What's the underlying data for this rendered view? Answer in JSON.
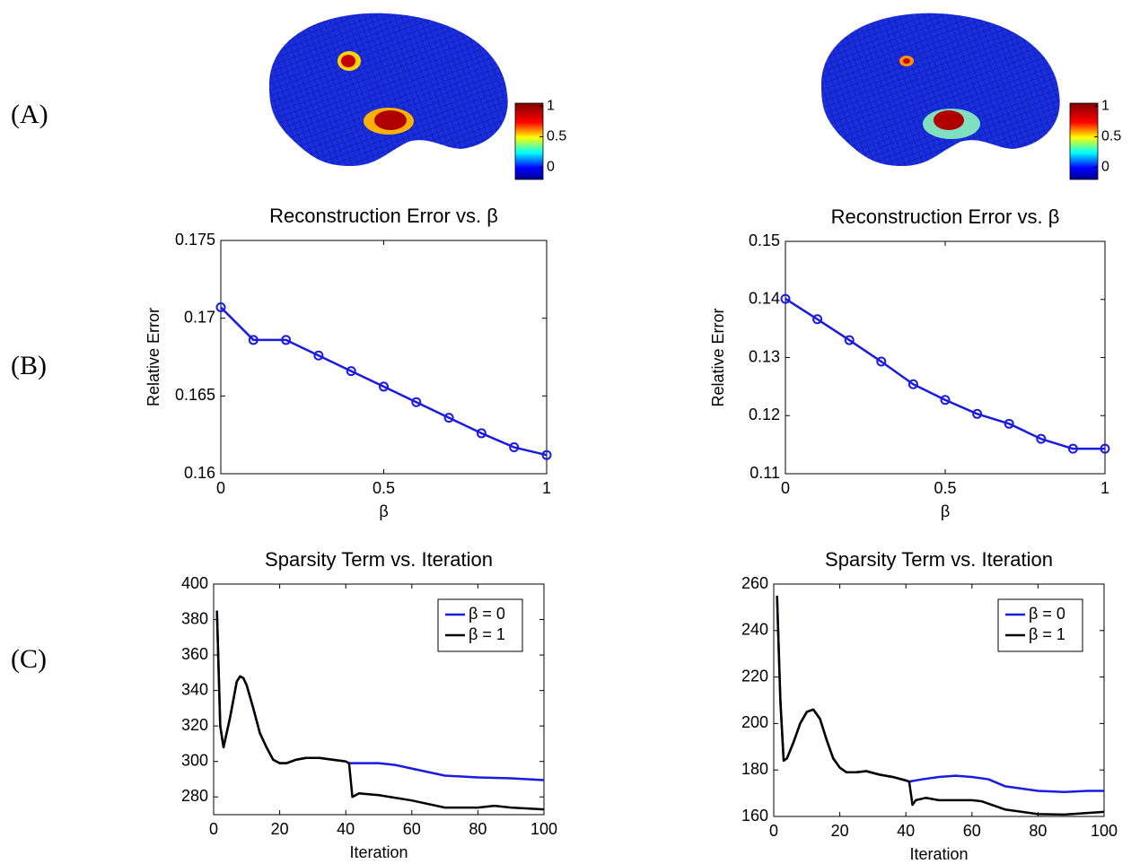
{
  "panel_labels": [
    "(A)",
    "(B)",
    "(C)"
  ],
  "chart_data": [
    {
      "type": "colorbar",
      "ylim": [
        -0.2,
        1.05
      ],
      "yticks": [
        0,
        0.5,
        1
      ]
    },
    {
      "type": "colorbar",
      "ylim": [
        -0.2,
        1.05
      ],
      "yticks": [
        0,
        0.5,
        1
      ]
    },
    {
      "type": "line",
      "title": "Reconstruction Error vs. β",
      "xlabel": "β",
      "ylabel": "Relative Error",
      "x": [
        0,
        0.1,
        0.2,
        0.3,
        0.4,
        0.5,
        0.6,
        0.7,
        0.8,
        0.9,
        1
      ],
      "xlim": [
        0,
        1
      ],
      "xticks": [
        0,
        0.5,
        1
      ],
      "ylim": [
        0.16,
        0.175
      ],
      "yticks": [
        0.16,
        0.165,
        0.17,
        0.175
      ],
      "series": [
        {
          "color": "#1a1ae0",
          "marker": "o",
          "values": [
            0.1707,
            0.1686,
            0.1686,
            0.1676,
            0.1666,
            0.1656,
            0.1646,
            0.1636,
            0.1626,
            0.1617,
            0.1612
          ]
        }
      ]
    },
    {
      "type": "line",
      "title": "Reconstruction Error vs. β",
      "xlabel": "β",
      "ylabel": "Relative Error",
      "x": [
        0,
        0.1,
        0.2,
        0.3,
        0.4,
        0.5,
        0.6,
        0.7,
        0.8,
        0.9,
        1
      ],
      "xlim": [
        0,
        1
      ],
      "xticks": [
        0,
        0.5,
        1
      ],
      "ylim": [
        0.11,
        0.15
      ],
      "yticks": [
        0.11,
        0.12,
        0.13,
        0.14,
        0.15
      ],
      "series": [
        {
          "color": "#1a1ae0",
          "marker": "o",
          "values": [
            0.1401,
            0.1366,
            0.133,
            0.1293,
            0.1254,
            0.1227,
            0.1203,
            0.1186,
            0.116,
            0.1143,
            0.1143
          ]
        }
      ]
    },
    {
      "type": "line",
      "title": "Sparsity Term vs. Iteration",
      "xlabel": "Iteration",
      "xlim": [
        0,
        100
      ],
      "xticks": [
        0,
        20,
        40,
        60,
        80,
        100
      ],
      "ylim": [
        270,
        400
      ],
      "yticks": [
        280,
        300,
        320,
        340,
        360,
        380,
        400
      ],
      "legend": "upper right",
      "series": [
        {
          "name": "β = 0",
          "color": "#1a1ae0",
          "x": [
            1,
            2,
            3,
            5,
            7,
            8,
            9,
            10,
            12,
            14,
            16,
            18,
            20,
            22,
            25,
            28,
            32,
            36,
            40,
            41,
            45,
            50,
            55,
            60,
            70,
            80,
            90,
            100
          ],
          "values": [
            385,
            320,
            308,
            325,
            345,
            348,
            347,
            343,
            330,
            316,
            308,
            301,
            299,
            299,
            301,
            302,
            302,
            301,
            300,
            299,
            299,
            299,
            298,
            296,
            292,
            291,
            290.5,
            289.5
          ]
        },
        {
          "name": "β = 1",
          "color": "#000000",
          "x": [
            1,
            2,
            3,
            5,
            7,
            8,
            9,
            10,
            12,
            14,
            16,
            18,
            20,
            22,
            25,
            28,
            32,
            36,
            40,
            41,
            42,
            44,
            50,
            60,
            70,
            80,
            85,
            90,
            100
          ],
          "values": [
            385,
            320,
            308,
            325,
            345,
            348,
            347,
            343,
            330,
            316,
            308,
            301,
            299,
            299,
            301,
            302,
            302,
            301,
            300,
            299,
            280,
            282,
            281,
            278,
            274,
            274,
            275,
            274,
            273
          ]
        }
      ]
    },
    {
      "type": "line",
      "title": "Sparsity Term vs. Iteration",
      "xlabel": "Iteration",
      "xlim": [
        0,
        100
      ],
      "xticks": [
        0,
        20,
        40,
        60,
        80,
        100
      ],
      "ylim": [
        160,
        260
      ],
      "yticks": [
        160,
        180,
        200,
        220,
        240,
        260
      ],
      "legend": "upper right",
      "series": [
        {
          "name": "β = 0",
          "color": "#1a1ae0",
          "x": [
            1,
            2,
            3,
            4,
            6,
            8,
            10,
            12,
            14,
            16,
            18,
            20,
            22,
            25,
            28,
            32,
            36,
            40,
            41,
            45,
            50,
            55,
            60,
            65,
            70,
            80,
            88,
            95,
            100
          ],
          "values": [
            255,
            210,
            184,
            185,
            192,
            200,
            205,
            206,
            202,
            193,
            185,
            181,
            179,
            179,
            179.5,
            178,
            177,
            175.5,
            175,
            176,
            177,
            177.5,
            177,
            176,
            173,
            171,
            170.5,
            171,
            171
          ]
        },
        {
          "name": "β = 1",
          "color": "#000000",
          "x": [
            1,
            2,
            3,
            4,
            6,
            8,
            10,
            12,
            14,
            16,
            18,
            20,
            22,
            25,
            28,
            32,
            36,
            40,
            41,
            42,
            43,
            46,
            50,
            60,
            63,
            66,
            70,
            80,
            88,
            95,
            100
          ],
          "values": [
            255,
            210,
            184,
            185,
            192,
            200,
            205,
            206,
            202,
            193,
            185,
            181,
            179,
            179,
            179.5,
            178,
            177,
            175.5,
            175,
            165,
            167,
            168,
            167,
            167,
            166.5,
            165,
            163,
            161,
            160.8,
            161.5,
            162
          ]
        }
      ]
    }
  ]
}
